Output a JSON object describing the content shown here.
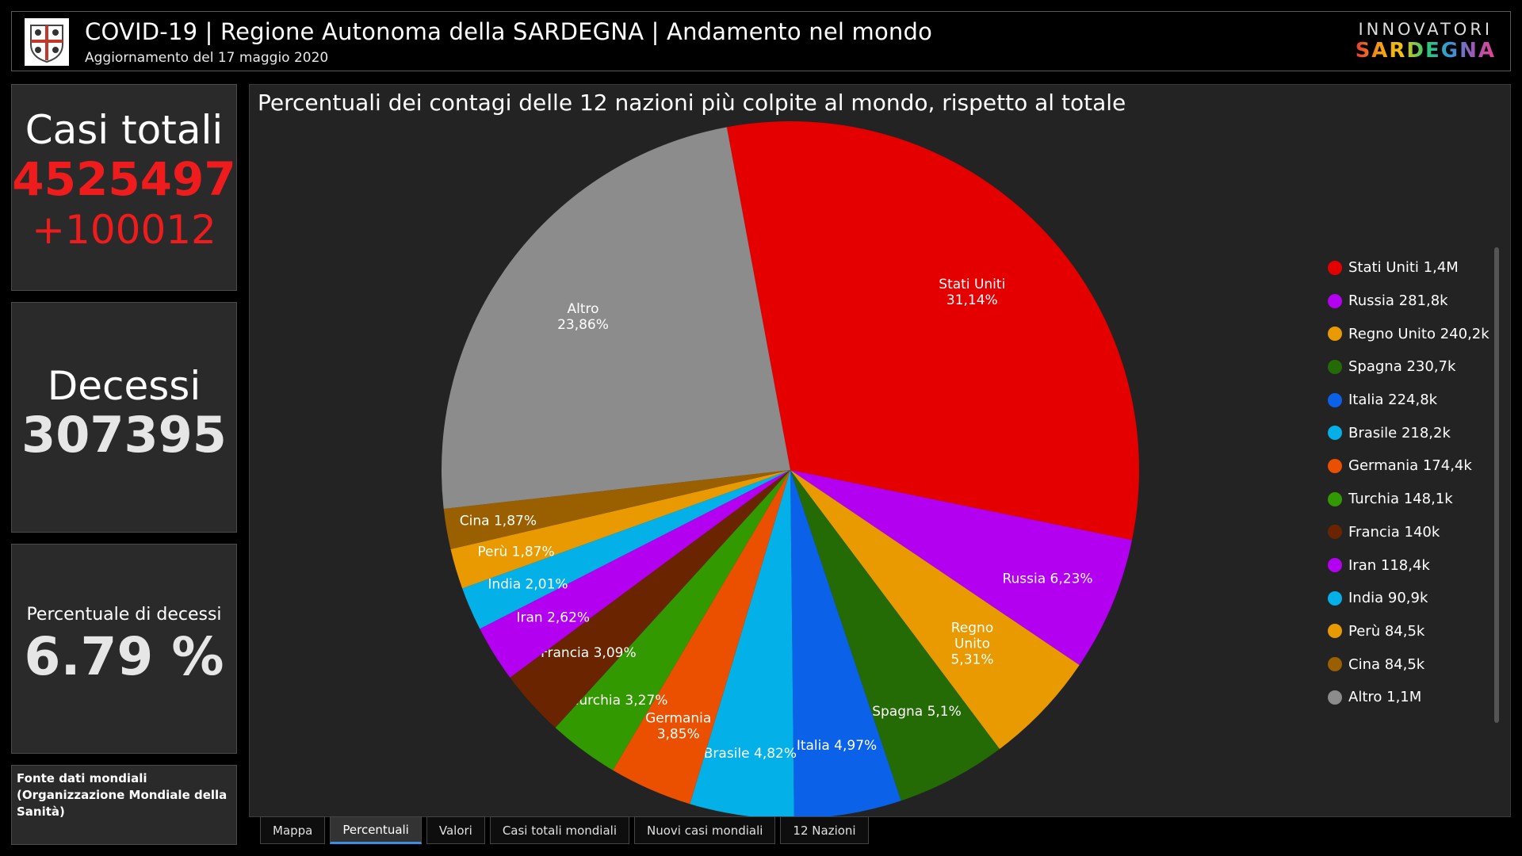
{
  "header": {
    "title": "COVID-19 | Regione Autonoma della SARDEGNA | Andamento nel mondo",
    "subtitle": "Aggiornamento del 17 maggio 2020",
    "brand_top": "INNOVATORI",
    "brand_bottom": "SARDEGNA",
    "logo_icon": "sardinia-coat-of-arms-icon"
  },
  "cards": {
    "casi": {
      "label": "Casi totali",
      "value": "4525497",
      "delta": "+100012"
    },
    "decessi": {
      "label": "Decessi",
      "value": "307395"
    },
    "perc": {
      "label": "Percentuale di decessi",
      "value": "6.79 %"
    },
    "fonte": {
      "text": "Fonte dati mondiali (Organizzazione Mondiale della Sanità)"
    }
  },
  "chart_data": {
    "type": "pie",
    "title": "Percentuali dei contagi delle 12 nazioni più colpite al mondo, rispetto al totale",
    "legend_position": "right",
    "slices": [
      {
        "name": "Stati Uniti",
        "percent": 31.14,
        "label": "Stati Uniti 31,14%",
        "legend": "Stati Uniti 1,4M",
        "color": "#e50000"
      },
      {
        "name": "Russia",
        "percent": 6.23,
        "label": "Russia 6,23%",
        "legend": "Russia 281,8k",
        "color": "#b400f0"
      },
      {
        "name": "Regno Unito",
        "percent": 5.31,
        "label": "Regno Unito 5,31%",
        "legend": "Regno Unito 240,2k",
        "color": "#e89a00"
      },
      {
        "name": "Spagna",
        "percent": 5.1,
        "label": "Spagna 5,1%",
        "legend": "Spagna 230,7k",
        "color": "#246b06"
      },
      {
        "name": "Italia",
        "percent": 4.97,
        "label": "Italia 4,97%",
        "legend": "Italia 224,8k",
        "color": "#0b62e8"
      },
      {
        "name": "Brasile",
        "percent": 4.82,
        "label": "Brasile 4,82%",
        "legend": "Brasile 218,2k",
        "color": "#03b1e8"
      },
      {
        "name": "Germania",
        "percent": 3.85,
        "label": "Germania 3,85%",
        "legend": "Germania 174,4k",
        "color": "#ea5000"
      },
      {
        "name": "Turchia",
        "percent": 3.27,
        "label": "Turchia 3,27%",
        "legend": "Turchia 148,1k",
        "color": "#329a00"
      },
      {
        "name": "Francia",
        "percent": 3.09,
        "label": "Francia 3,09%",
        "legend": "Francia 140k",
        "color": "#6a2400"
      },
      {
        "name": "Iran",
        "percent": 2.62,
        "label": "Iran 2,62%",
        "legend": "Iran 118,4k",
        "color": "#b400f0"
      },
      {
        "name": "India",
        "percent": 2.01,
        "label": "India 2,01%",
        "legend": "India 90,9k",
        "color": "#03b1e8"
      },
      {
        "name": "Perù",
        "percent": 1.87,
        "label": "Perù 1,87%",
        "legend": "Perù 84,5k",
        "color": "#e89a00"
      },
      {
        "name": "Cina",
        "percent": 1.87,
        "label": "Cina 1,87%",
        "legend": "Cina 84,5k",
        "color": "#9a6000"
      },
      {
        "name": "Altro",
        "percent": 23.86,
        "label": "Altro 23,86%",
        "legend": "Altro 1,1M",
        "color": "#8c8c8c"
      }
    ]
  },
  "tabs": [
    {
      "label": "Mappa",
      "active": false
    },
    {
      "label": "Percentuali",
      "active": true
    },
    {
      "label": "Valori",
      "active": false
    },
    {
      "label": "Casi totali mondiali",
      "active": false
    },
    {
      "label": "Nuovi casi mondiali",
      "active": false
    },
    {
      "label": "12 Nazioni",
      "active": false
    }
  ]
}
